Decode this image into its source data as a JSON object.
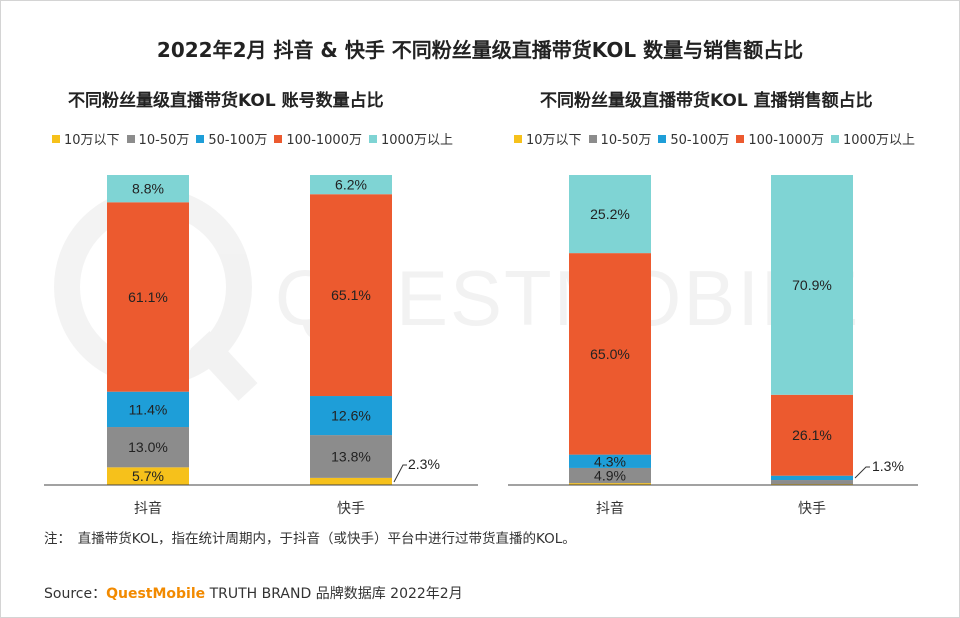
{
  "title": "2022年2月 抖音 & 快手 不同粉丝量级直播带货KOL 数量与销售额占比",
  "colors": {
    "10万以下": "#f6c11b",
    "10-50万": "#8c8c8c",
    "50-100万": "#1e9ed8",
    "100-1000万": "#ec5a2f",
    "1000万以上": "#7fd4d4"
  },
  "legend": [
    "10万以下",
    "10-50万",
    "50-100万",
    "100-1000万",
    "1000万以上"
  ],
  "chart_data": [
    {
      "type": "bar",
      "stacked": true,
      "title": "不同粉丝量级直播带货KOL 账号数量占比",
      "categories": [
        "抖音",
        "快手"
      ],
      "series": [
        {
          "name": "10万以下",
          "values": [
            5.7,
            2.3
          ]
        },
        {
          "name": "10-50万",
          "values": [
            13.0,
            13.8
          ]
        },
        {
          "name": "50-100万",
          "values": [
            11.4,
            12.6
          ]
        },
        {
          "name": "100-1000万",
          "values": [
            61.1,
            65.1
          ]
        },
        {
          "name": "1000万以上",
          "values": [
            8.8,
            6.2
          ]
        }
      ],
      "labels": [
        [
          "5.7%",
          "13.0%",
          "11.4%",
          "61.1%",
          "8.8%"
        ],
        [
          "2.3%",
          "13.8%",
          "12.6%",
          "65.1%",
          "6.2%"
        ]
      ],
      "ylim": [
        0,
        100
      ]
    },
    {
      "type": "bar",
      "stacked": true,
      "title": "不同粉丝量级直播带货KOL 直播销售额占比",
      "categories": [
        "抖音",
        "快手"
      ],
      "series": [
        {
          "name": "10万以下",
          "values": [
            0.6,
            0.3
          ]
        },
        {
          "name": "10-50万",
          "values": [
            4.9,
            1.3
          ]
        },
        {
          "name": "50-100万",
          "values": [
            4.3,
            1.4
          ]
        },
        {
          "name": "100-1000万",
          "values": [
            65.0,
            26.1
          ]
        },
        {
          "name": "1000万以上",
          "values": [
            25.2,
            70.9
          ]
        }
      ],
      "labels": [
        [
          "",
          "4.9%",
          "4.3%",
          "65.0%",
          "25.2%"
        ],
        [
          "",
          "1.3%",
          "",
          "26.1%",
          "70.9%"
        ]
      ],
      "ylim": [
        0,
        100
      ]
    }
  ],
  "footnote": "注：　直播带货KOL，指在统计周期内，于抖音（或快手）平台中进行过带货直播的KOL。",
  "source": {
    "prefix": "Source：",
    "brand": "QuestMobile",
    "rest": " TRUTH BRAND 品牌数据库 2022年2月"
  },
  "watermark": "QUESTMOBILE"
}
